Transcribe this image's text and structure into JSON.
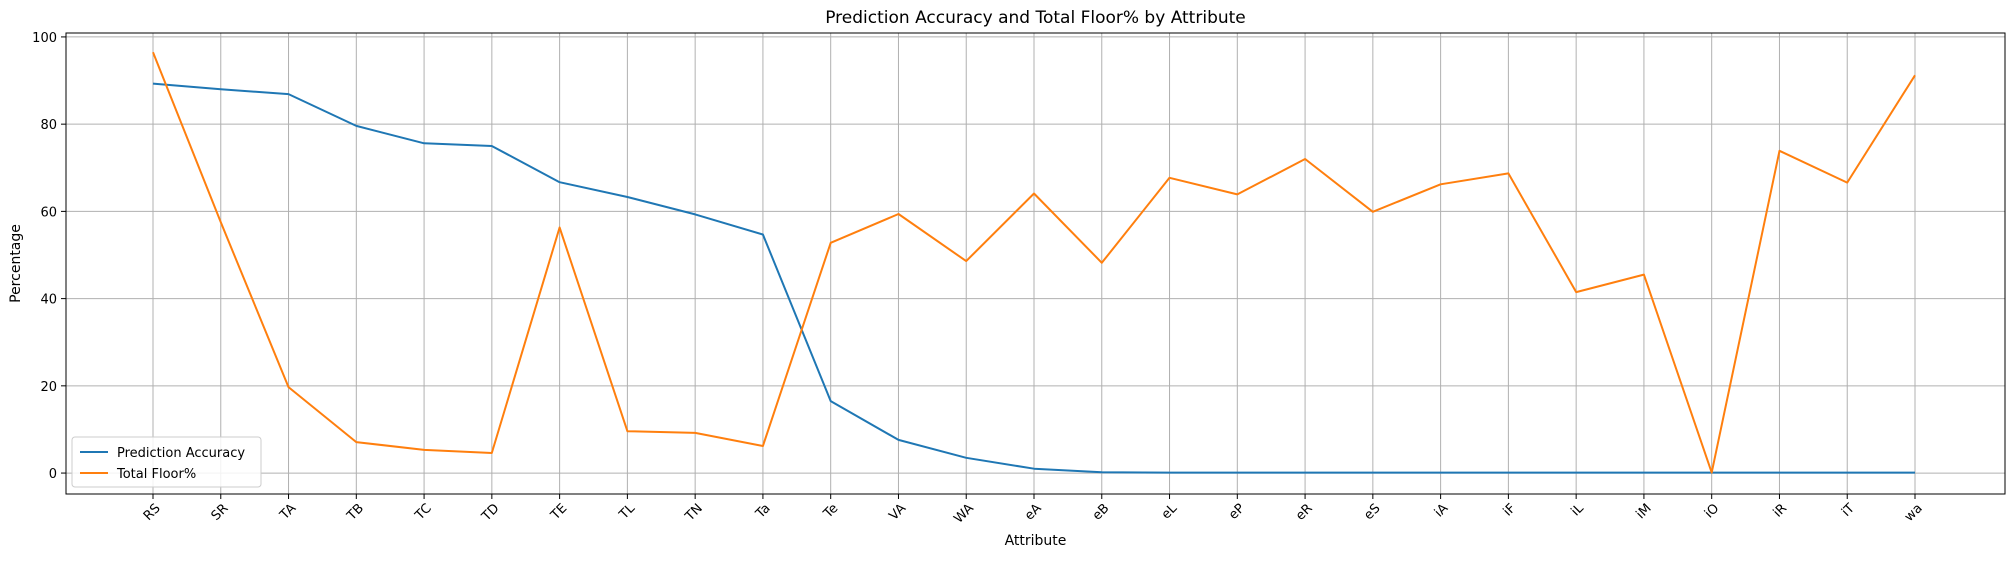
{
  "chart_data": {
    "type": "line",
    "title": "Prediction Accuracy and Total Floor% by Attribute",
    "xlabel": "Attribute",
    "ylabel": "Percentage",
    "ylim": [
      -4.8,
      100.9
    ],
    "yticks": [
      0,
      20,
      40,
      60,
      80,
      100
    ],
    "grid": true,
    "legend_position": "lower-left",
    "categories": [
      "RS",
      "SR",
      "TA",
      "TB",
      "TC",
      "TD",
      "TE",
      "TL",
      "TN",
      "Ta",
      "Te",
      "VA",
      "WA",
      "eA",
      "eB",
      "eL",
      "eP",
      "eR",
      "eS",
      "iA",
      "iF",
      "iL",
      "iM",
      "iO",
      "iR",
      "iT",
      "wa"
    ],
    "series": [
      {
        "name": "Prediction Accuracy",
        "color": "#1f77b4",
        "values": [
          89.3,
          88.0,
          86.9,
          79.6,
          75.6,
          75.0,
          66.7,
          63.3,
          59.3,
          54.7,
          16.5,
          7.6,
          3.5,
          1.0,
          0.2,
          0.1,
          0.1,
          0.1,
          0.1,
          0.1,
          0.1,
          0.1,
          0.1,
          0.1,
          0.1,
          0.1,
          0.1
        ]
      },
      {
        "name": "Total Floor%",
        "color": "#ff7f0e",
        "values": [
          96.5,
          57.5,
          19.7,
          7.1,
          5.3,
          4.6,
          56.3,
          9.6,
          9.2,
          6.2,
          52.8,
          59.4,
          48.6,
          64.1,
          48.2,
          67.7,
          63.9,
          72.0,
          59.9,
          66.2,
          68.7,
          41.5,
          45.5,
          0.1,
          73.9,
          66.6,
          91.2
        ]
      }
    ]
  }
}
